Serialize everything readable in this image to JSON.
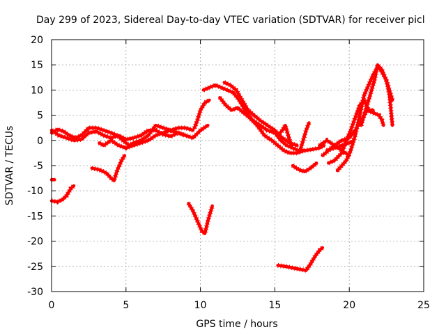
{
  "chart_data": {
    "type": "scatter",
    "title": "Day 299 of 2023, Sidereal Day-to-day VTEC variation (SDTVAR) for receiver picl",
    "xlabel": "GPS time / hours",
    "ylabel": "SDTVAR / TECUs",
    "xlim": [
      0,
      25
    ],
    "ylim": [
      -30,
      20
    ],
    "xticks": [
      0,
      5,
      10,
      15,
      20,
      25
    ],
    "yticks": [
      -30,
      -25,
      -20,
      -15,
      -10,
      -5,
      0,
      5,
      10,
      15,
      20
    ],
    "grid": true,
    "marker": "+",
    "color": "#ff0000",
    "series": [
      {
        "name": "trace-main-lower",
        "points": [
          [
            0.0,
            2.0
          ],
          [
            0.5,
            1.0
          ],
          [
            1.0,
            0.5
          ],
          [
            1.5,
            0.0
          ],
          [
            2.0,
            0.2
          ],
          [
            2.5,
            1.5
          ],
          [
            3.0,
            1.8
          ],
          [
            3.5,
            1.0
          ],
          [
            4.0,
            0.5
          ],
          [
            4.5,
            1.0
          ],
          [
            5.0,
            0.2
          ],
          [
            5.5,
            0.5
          ],
          [
            6.0,
            1.0
          ],
          [
            6.5,
            2.0
          ],
          [
            7.0,
            2.0
          ],
          [
            7.5,
            1.2
          ],
          [
            8.0,
            0.8
          ],
          [
            8.5,
            1.5
          ],
          [
            9.0,
            1.0
          ],
          [
            9.5,
            0.5
          ],
          [
            10.0,
            2.0
          ],
          [
            10.5,
            3.0
          ]
        ]
      },
      {
        "name": "trace-main-upper",
        "points": [
          [
            0.0,
            1.5
          ],
          [
            0.4,
            2.2
          ],
          [
            0.8,
            1.8
          ],
          [
            1.2,
            1.0
          ],
          [
            1.6,
            0.5
          ],
          [
            2.0,
            1.0
          ],
          [
            2.5,
            2.5
          ],
          [
            3.0,
            2.5
          ],
          [
            3.5,
            2.0
          ],
          [
            4.0,
            1.5
          ],
          [
            4.4,
            1.0
          ],
          [
            4.8,
            0.0
          ],
          [
            5.2,
            -1.0
          ],
          [
            5.5,
            -0.5
          ],
          [
            6.0,
            0.0
          ],
          [
            6.5,
            1.0
          ],
          [
            7.0,
            3.0
          ],
          [
            7.5,
            2.5
          ],
          [
            8.0,
            2.0
          ],
          [
            8.5,
            2.5
          ],
          [
            9.0,
            2.5
          ],
          [
            9.5,
            2.0
          ]
        ]
      },
      {
        "name": "trace-main-low2",
        "points": [
          [
            3.2,
            -0.5
          ],
          [
            3.5,
            -1.0
          ],
          [
            4.0,
            0.0
          ],
          [
            4.5,
            -1.0
          ],
          [
            5.0,
            -1.5
          ],
          [
            5.5,
            -1.0
          ],
          [
            6.0,
            -0.5
          ],
          [
            6.5,
            0.0
          ],
          [
            7.0,
            1.0
          ],
          [
            7.5,
            1.5
          ],
          [
            8.0,
            2.0
          ],
          [
            8.5,
            1.5
          ],
          [
            9.0,
            1.0
          ]
        ]
      },
      {
        "name": "trace-rise-a",
        "points": [
          [
            9.6,
            2.5
          ],
          [
            9.8,
            4.0
          ],
          [
            10.0,
            6.0
          ],
          [
            10.3,
            7.5
          ],
          [
            10.6,
            8.0
          ]
        ]
      },
      {
        "name": "trace-hump-a",
        "points": [
          [
            10.2,
            10.0
          ],
          [
            10.6,
            10.5
          ],
          [
            11.0,
            11.0
          ],
          [
            11.4,
            10.5
          ],
          [
            11.8,
            10.0
          ],
          [
            12.2,
            9.5
          ],
          [
            12.6,
            8.0
          ],
          [
            13.0,
            6.0
          ],
          [
            13.5,
            4.0
          ],
          [
            14.0,
            3.0
          ],
          [
            14.5,
            2.0
          ],
          [
            15.0,
            1.5
          ],
          [
            15.4,
            0.0
          ],
          [
            15.8,
            -1.0
          ],
          [
            16.2,
            -1.5
          ],
          [
            16.6,
            -2.0
          ],
          [
            17.0,
            -2.0
          ],
          [
            17.5,
            -1.8
          ],
          [
            18.0,
            -1.5
          ],
          [
            18.3,
            -1.0
          ]
        ]
      },
      {
        "name": "trace-hump-b",
        "points": [
          [
            11.6,
            11.5
          ],
          [
            12.0,
            11.0
          ],
          [
            12.4,
            10.0
          ],
          [
            12.8,
            8.0
          ],
          [
            13.2,
            6.0
          ],
          [
            13.6,
            5.0
          ],
          [
            14.0,
            4.0
          ],
          [
            14.5,
            3.0
          ],
          [
            15.0,
            2.0
          ],
          [
            15.5,
            0.5
          ],
          [
            16.0,
            -0.5
          ],
          [
            16.5,
            -1.0
          ]
        ]
      },
      {
        "name": "trace-hump-c",
        "points": [
          [
            11.3,
            8.5
          ],
          [
            11.7,
            7.0
          ],
          [
            12.1,
            6.0
          ],
          [
            12.5,
            6.5
          ],
          [
            12.9,
            5.5
          ],
          [
            13.3,
            4.5
          ],
          [
            13.8,
            3.0
          ],
          [
            14.3,
            1.0
          ],
          [
            14.8,
            0.0
          ],
          [
            15.2,
            -1.0
          ],
          [
            15.6,
            -2.0
          ],
          [
            16.0,
            -2.5
          ],
          [
            16.5,
            -2.5
          ],
          [
            17.0,
            -2.0
          ]
        ]
      },
      {
        "name": "trace-spike-15",
        "points": [
          [
            15.2,
            1.0
          ],
          [
            15.5,
            2.0
          ],
          [
            15.7,
            3.0
          ],
          [
            15.9,
            1.0
          ],
          [
            16.1,
            -1.0
          ]
        ]
      },
      {
        "name": "trace-spike-17",
        "points": [
          [
            16.7,
            -2.0
          ],
          [
            16.9,
            0.0
          ],
          [
            17.1,
            2.0
          ],
          [
            17.3,
            3.5
          ]
        ]
      },
      {
        "name": "trace-evening-a",
        "points": [
          [
            18.0,
            -1.0
          ],
          [
            18.5,
            0.0
          ],
          [
            19.0,
            -1.0
          ],
          [
            19.5,
            -2.0
          ],
          [
            20.0,
            -3.0
          ]
        ]
      },
      {
        "name": "trace-evening-b",
        "points": [
          [
            18.2,
            -3.0
          ],
          [
            18.6,
            -2.0
          ],
          [
            19.0,
            -1.0
          ],
          [
            19.5,
            0.0
          ],
          [
            20.0,
            0.5
          ],
          [
            20.4,
            2.0
          ],
          [
            20.8,
            4.0
          ],
          [
            21.2,
            6.0
          ],
          [
            21.6,
            5.5
          ],
          [
            22.0,
            5.0
          ],
          [
            22.2,
            4.0
          ],
          [
            22.3,
            3.0
          ]
        ]
      },
      {
        "name": "trace-evening-c",
        "points": [
          [
            18.6,
            -4.5
          ],
          [
            19.0,
            -4.0
          ],
          [
            19.5,
            -2.5
          ],
          [
            19.8,
            0.0
          ],
          [
            20.1,
            2.0
          ],
          [
            20.4,
            4.5
          ],
          [
            20.7,
            7.0
          ],
          [
            21.0,
            8.0
          ],
          [
            21.3,
            6.0
          ],
          [
            21.6,
            6.0
          ]
        ]
      },
      {
        "name": "trace-evening-d",
        "points": [
          [
            19.2,
            -6.0
          ],
          [
            19.5,
            -5.0
          ],
          [
            19.8,
            -4.0
          ],
          [
            20.1,
            -2.0
          ],
          [
            20.4,
            1.0
          ],
          [
            20.7,
            5.0
          ],
          [
            21.0,
            9.0
          ],
          [
            21.3,
            11.0
          ],
          [
            21.6,
            13.0
          ],
          [
            21.9,
            14.5
          ],
          [
            22.1,
            14.0
          ],
          [
            22.3,
            13.0
          ],
          [
            22.5,
            12.0
          ],
          [
            22.7,
            9.0
          ],
          [
            22.8,
            6.0
          ],
          [
            22.9,
            3.0
          ]
        ]
      },
      {
        "name": "trace-evening-e",
        "points": [
          [
            20.8,
            3.0
          ],
          [
            21.1,
            6.0
          ],
          [
            21.4,
            9.0
          ],
          [
            21.7,
            12.0
          ],
          [
            21.9,
            15.0
          ],
          [
            22.2,
            14.0
          ],
          [
            22.6,
            11.0
          ],
          [
            22.9,
            8.0
          ]
        ]
      },
      {
        "name": "trace-night-tail",
        "points": [
          [
            18.5,
            -2.0
          ],
          [
            19.0,
            -1.5
          ],
          [
            19.5,
            -1.0
          ],
          [
            20.0,
            -0.5
          ],
          [
            20.3,
            0.0
          ]
        ]
      },
      {
        "name": "trace-start-neg",
        "points": [
          [
            0.0,
            -12.0
          ],
          [
            0.4,
            -12.2
          ],
          [
            0.7,
            -11.8
          ],
          [
            1.0,
            -11.0
          ],
          [
            1.3,
            -9.5
          ],
          [
            1.5,
            -9.0
          ]
        ]
      },
      {
        "name": "trace-start-point",
        "points": [
          [
            0.0,
            -7.8
          ],
          [
            0.2,
            -7.8
          ]
        ]
      },
      {
        "name": "trace-dip-4h",
        "points": [
          [
            2.7,
            -5.5
          ],
          [
            3.2,
            -5.8
          ],
          [
            3.7,
            -6.5
          ],
          [
            4.0,
            -7.5
          ],
          [
            4.2,
            -8.0
          ],
          [
            4.4,
            -6.0
          ],
          [
            4.7,
            -4.0
          ],
          [
            4.9,
            -3.0
          ]
        ]
      },
      {
        "name": "trace-dip-10h",
        "points": [
          [
            9.2,
            -12.5
          ],
          [
            9.5,
            -14.0
          ],
          [
            9.8,
            -16.0
          ],
          [
            10.1,
            -18.0
          ],
          [
            10.3,
            -18.5
          ],
          [
            10.5,
            -16.0
          ],
          [
            10.8,
            -13.0
          ]
        ]
      },
      {
        "name": "trace-dip-17h",
        "points": [
          [
            15.2,
            -24.8
          ],
          [
            15.7,
            -25.0
          ],
          [
            16.2,
            -25.3
          ],
          [
            16.7,
            -25.6
          ],
          [
            17.1,
            -25.8
          ],
          [
            17.4,
            -24.5
          ],
          [
            17.7,
            -23.0
          ],
          [
            18.0,
            -21.8
          ],
          [
            18.2,
            -21.3
          ]
        ]
      },
      {
        "name": "trace-dip-16h",
        "points": [
          [
            16.2,
            -5.0
          ],
          [
            16.6,
            -5.8
          ],
          [
            17.0,
            -6.2
          ],
          [
            17.4,
            -5.5
          ],
          [
            17.8,
            -4.5
          ]
        ]
      }
    ]
  }
}
